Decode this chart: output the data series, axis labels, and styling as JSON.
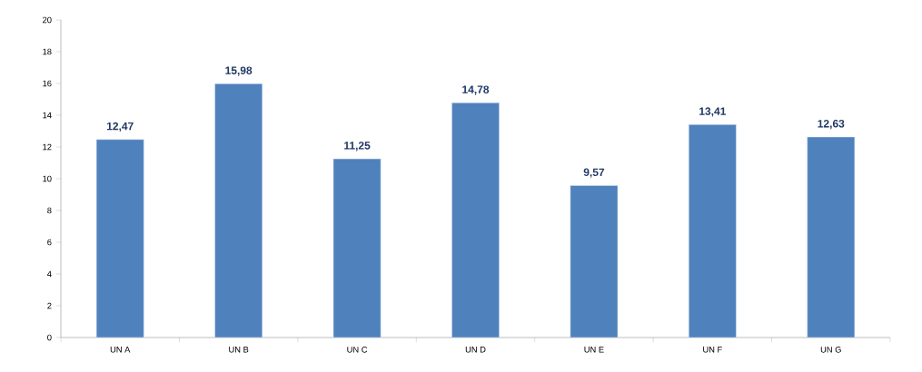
{
  "chart_data": {
    "type": "bar",
    "categories": [
      "UN A",
      "UN B",
      "UN C",
      "UN D",
      "UN E",
      "UN F",
      "UN G"
    ],
    "values": [
      12.47,
      15.98,
      11.25,
      14.78,
      9.57,
      13.41,
      12.63
    ],
    "value_labels": [
      "12,47",
      "15,98",
      "11,25",
      "14,78",
      "9,57",
      "13,41",
      "12,63"
    ],
    "color": "#4f81bd",
    "ylim": [
      0,
      20
    ],
    "yticks": [
      0,
      2,
      4,
      6,
      8,
      10,
      12,
      14,
      16,
      18,
      20
    ],
    "grid": false
  }
}
